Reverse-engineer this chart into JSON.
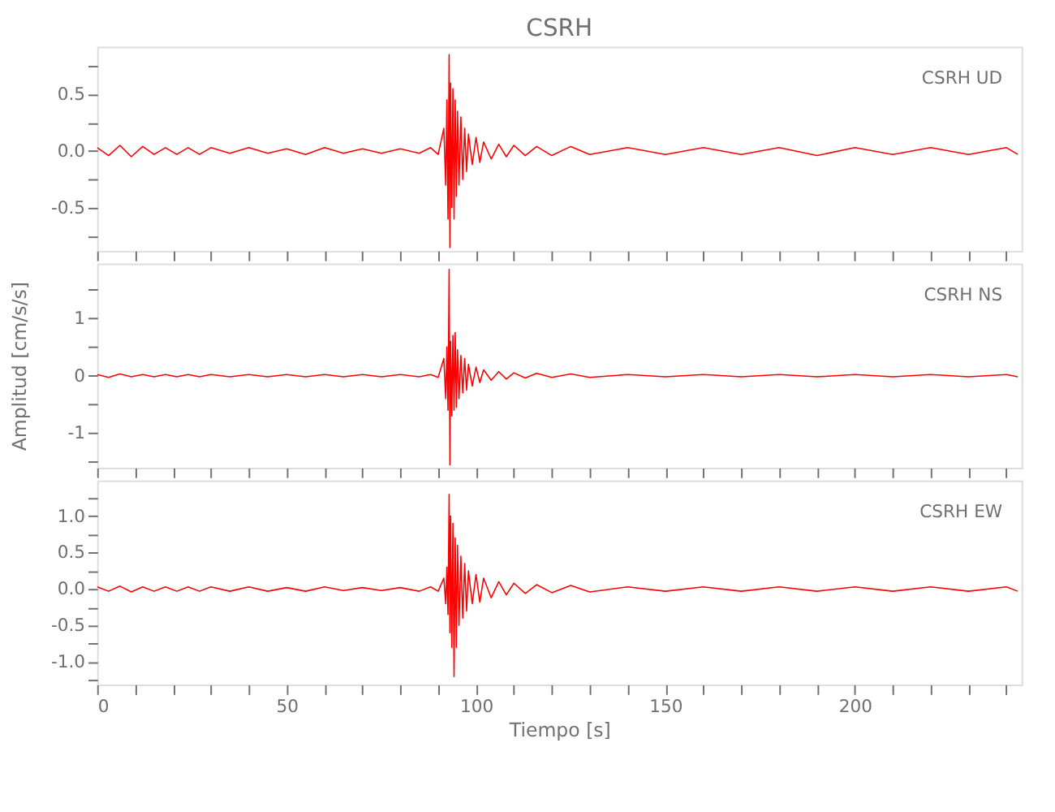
{
  "chart_data": [
    {
      "type": "line",
      "title": "CSRH",
      "annotations": [
        "CSRH   UD"
      ],
      "tick_labels": "y",
      "xlim": [
        0,
        244
      ],
      "xticks": [
        0,
        {
          "value": 10,
          "label": null
        },
        {
          "value": 20,
          "label": null
        },
        {
          "value": 30,
          "label": null
        },
        {
          "value": 40,
          "label": null
        },
        50,
        {
          "value": 60,
          "label": null
        },
        {
          "value": 70,
          "label": null
        },
        {
          "value": 80,
          "label": null
        },
        {
          "value": 90,
          "label": null
        },
        100,
        {
          "value": 110,
          "label": null
        },
        {
          "value": 120,
          "label": null
        },
        {
          "value": 130,
          "label": null
        },
        {
          "value": 140,
          "label": null
        },
        150,
        {
          "value": 160,
          "label": null
        },
        {
          "value": 170,
          "label": null
        },
        {
          "value": 180,
          "label": null
        },
        {
          "value": 190,
          "label": null
        },
        200,
        {
          "value": 210,
          "label": null
        },
        {
          "value": 220,
          "label": null
        },
        {
          "value": 230,
          "label": null
        },
        {
          "value": 240,
          "label": null
        }
      ],
      "ylim": [
        -0.88,
        0.92
      ],
      "yticks": [
        {
          "value": -0.75,
          "label": null
        },
        {
          "value": -0.5,
          "label": "-0.5"
        },
        {
          "value": -0.25,
          "label": null
        },
        {
          "value": 0,
          "label": "0.0"
        },
        {
          "value": 0.25,
          "label": null
        },
        {
          "value": 0.5,
          "label": "0.5"
        },
        {
          "value": 0.75,
          "label": null
        }
      ],
      "x": [
        0,
        3,
        6,
        9,
        12,
        15,
        18,
        21,
        24,
        27,
        30,
        35,
        40,
        45,
        50,
        55,
        60,
        65,
        70,
        75,
        80,
        85,
        88,
        90,
        91.5,
        92,
        92.3,
        92.6,
        92.9,
        93.1,
        93.3,
        93.6,
        93.9,
        94.2,
        94.5,
        94.8,
        95.1,
        95.5,
        96,
        96.5,
        97,
        97.5,
        98,
        99,
        100,
        101,
        102,
        104,
        106,
        108,
        110,
        113,
        116,
        120,
        125,
        130,
        140,
        150,
        160,
        170,
        180,
        190,
        200,
        210,
        220,
        230,
        240,
        243
      ],
      "series": [
        {
          "color": "#ff0000",
          "values": [
            0.03,
            -0.04,
            0.05,
            -0.05,
            0.04,
            -0.03,
            0.03,
            -0.03,
            0.03,
            -0.03,
            0.03,
            -0.02,
            0.03,
            -0.02,
            0.02,
            -0.03,
            0.03,
            -0.02,
            0.02,
            -0.02,
            0.02,
            -0.02,
            0.03,
            -0.03,
            0.2,
            -0.3,
            0.45,
            -0.6,
            0.85,
            -0.85,
            0.6,
            -0.5,
            0.55,
            -0.6,
            0.45,
            -0.4,
            0.35,
            -0.3,
            0.3,
            -0.25,
            0.2,
            -0.18,
            0.15,
            -0.12,
            0.12,
            -0.1,
            0.08,
            -0.07,
            0.06,
            -0.05,
            0.05,
            -0.04,
            0.04,
            -0.04,
            0.04,
            -0.03,
            0.03,
            -0.03,
            0.03,
            -0.03,
            0.03,
            -0.04,
            0.03,
            -0.03,
            0.03,
            -0.03,
            0.03,
            -0.03
          ]
        }
      ]
    },
    {
      "type": "line",
      "ylabel": "Amplitud [cm/s/s]",
      "annotations": [
        "CSRH   NS"
      ],
      "tick_labels": "y",
      "xlim": [
        0,
        244
      ],
      "xticks": [
        0,
        {
          "value": 10,
          "label": null
        },
        {
          "value": 20,
          "label": null
        },
        {
          "value": 30,
          "label": null
        },
        {
          "value": 40,
          "label": null
        },
        50,
        {
          "value": 60,
          "label": null
        },
        {
          "value": 70,
          "label": null
        },
        {
          "value": 80,
          "label": null
        },
        {
          "value": 90,
          "label": null
        },
        100,
        {
          "value": 110,
          "label": null
        },
        {
          "value": 120,
          "label": null
        },
        {
          "value": 130,
          "label": null
        },
        {
          "value": 140,
          "label": null
        },
        150,
        {
          "value": 160,
          "label": null
        },
        {
          "value": 170,
          "label": null
        },
        {
          "value": 180,
          "label": null
        },
        {
          "value": 190,
          "label": null
        },
        200,
        {
          "value": 210,
          "label": null
        },
        {
          "value": 220,
          "label": null
        },
        {
          "value": 230,
          "label": null
        },
        {
          "value": 240,
          "label": null
        }
      ],
      "ylim": [
        -1.6,
        1.95
      ],
      "yticks": [
        {
          "value": -1.5,
          "label": null
        },
        -1,
        {
          "value": -0.5,
          "label": null
        },
        0,
        {
          "value": 0.5,
          "label": null
        },
        1,
        {
          "value": 1.5,
          "label": null
        }
      ],
      "x": [
        0,
        3,
        6,
        9,
        12,
        15,
        18,
        21,
        24,
        27,
        30,
        35,
        40,
        45,
        50,
        55,
        60,
        65,
        70,
        75,
        80,
        85,
        88,
        90,
        91.5,
        92,
        92.3,
        92.6,
        92.9,
        93.1,
        93.3,
        93.6,
        93.9,
        94.2,
        94.5,
        94.8,
        95.1,
        95.5,
        96,
        96.5,
        97,
        97.5,
        98,
        99,
        100,
        101,
        102,
        104,
        106,
        108,
        110,
        113,
        116,
        120,
        125,
        130,
        140,
        150,
        160,
        170,
        180,
        190,
        200,
        210,
        220,
        230,
        240,
        243
      ],
      "series": [
        {
          "color": "#ff0000",
          "values": [
            0.02,
            -0.03,
            0.03,
            -0.02,
            0.02,
            -0.02,
            0.02,
            -0.02,
            0.02,
            -0.02,
            0.02,
            -0.02,
            0.02,
            -0.02,
            0.02,
            -0.02,
            0.02,
            -0.02,
            0.02,
            -0.02,
            0.02,
            -0.02,
            0.02,
            -0.03,
            0.3,
            -0.4,
            0.5,
            -0.6,
            1.85,
            -1.55,
            0.6,
            -0.7,
            0.7,
            -0.6,
            0.75,
            -0.55,
            0.45,
            -0.4,
            0.35,
            -0.3,
            0.3,
            -0.25,
            0.2,
            -0.18,
            0.15,
            -0.12,
            0.1,
            -0.08,
            0.07,
            -0.06,
            0.05,
            -0.04,
            0.04,
            -0.03,
            0.03,
            -0.03,
            0.02,
            -0.02,
            0.02,
            -0.02,
            0.02,
            -0.02,
            0.02,
            -0.02,
            0.02,
            -0.02,
            0.02,
            -0.02
          ]
        }
      ]
    },
    {
      "type": "line",
      "xlabel": "Tiempo [s]",
      "annotations": [
        "CSRH   EW"
      ],
      "xlim": [
        0,
        244
      ],
      "xticks": [
        0,
        {
          "value": 10,
          "label": null
        },
        {
          "value": 20,
          "label": null
        },
        {
          "value": 30,
          "label": null
        },
        {
          "value": 40,
          "label": null
        },
        50,
        {
          "value": 60,
          "label": null
        },
        {
          "value": 70,
          "label": null
        },
        {
          "value": 80,
          "label": null
        },
        {
          "value": 90,
          "label": null
        },
        100,
        {
          "value": 110,
          "label": null
        },
        {
          "value": 120,
          "label": null
        },
        {
          "value": 130,
          "label": null
        },
        {
          "value": 140,
          "label": null
        },
        150,
        {
          "value": 160,
          "label": null
        },
        {
          "value": 170,
          "label": null
        },
        {
          "value": 180,
          "label": null
        },
        {
          "value": 190,
          "label": null
        },
        200,
        {
          "value": 210,
          "label": null
        },
        {
          "value": 220,
          "label": null
        },
        {
          "value": 230,
          "label": null
        },
        {
          "value": 240,
          "label": null
        }
      ],
      "ylim": [
        -1.31,
        1.49
      ],
      "yticks": [
        {
          "value": -1.25,
          "label": null
        },
        {
          "value": -1,
          "label": "-1.0"
        },
        {
          "value": -0.75,
          "label": null
        },
        {
          "value": -0.5,
          "label": "-0.5"
        },
        {
          "value": -0.25,
          "label": null
        },
        {
          "value": 0,
          "label": "0.0"
        },
        {
          "value": 0.25,
          "label": null
        },
        {
          "value": 0.5,
          "label": "0.5"
        },
        {
          "value": 0.75,
          "label": null
        },
        {
          "value": 1,
          "label": "1.0"
        },
        {
          "value": 1.25,
          "label": null
        }
      ],
      "x": [
        0,
        3,
        6,
        9,
        12,
        15,
        18,
        21,
        24,
        27,
        30,
        35,
        40,
        45,
        50,
        55,
        60,
        65,
        70,
        75,
        80,
        85,
        88,
        90,
        91.5,
        92,
        92.3,
        92.6,
        92.9,
        93.1,
        93.3,
        93.6,
        93.9,
        94.2,
        94.5,
        94.8,
        95.1,
        95.5,
        96,
        96.5,
        97,
        97.5,
        98,
        99,
        100,
        101,
        102,
        104,
        106,
        108,
        110,
        113,
        116,
        120,
        125,
        130,
        140,
        150,
        160,
        170,
        180,
        190,
        200,
        210,
        220,
        230,
        240,
        243
      ],
      "series": [
        {
          "color": "#ff0000",
          "values": [
            0.03,
            -0.03,
            0.04,
            -0.04,
            0.03,
            -0.03,
            0.03,
            -0.03,
            0.03,
            -0.03,
            0.03,
            -0.03,
            0.03,
            -0.03,
            0.02,
            -0.03,
            0.03,
            -0.02,
            0.02,
            -0.02,
            0.02,
            -0.03,
            0.03,
            -0.03,
            0.15,
            -0.2,
            0.3,
            -0.35,
            1.3,
            -0.6,
            1.0,
            -0.8,
            0.9,
            -1.2,
            0.7,
            -0.8,
            0.6,
            -0.5,
            0.45,
            -0.4,
            0.35,
            -0.3,
            0.25,
            -0.2,
            0.2,
            -0.18,
            0.15,
            -0.12,
            0.1,
            -0.08,
            0.08,
            -0.06,
            0.06,
            -0.05,
            0.05,
            -0.04,
            0.03,
            -0.03,
            0.03,
            -0.03,
            0.03,
            -0.03,
            0.03,
            -0.03,
            0.03,
            -0.03,
            0.03,
            -0.03
          ]
        }
      ]
    }
  ]
}
